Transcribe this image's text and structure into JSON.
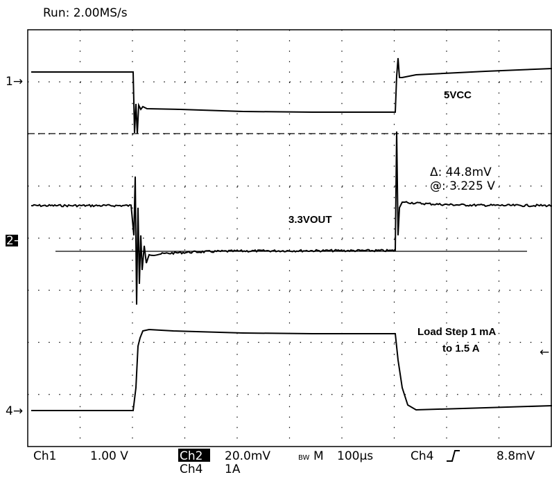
{
  "header": {
    "run": "Run: 2.00MS/s"
  },
  "markers": {
    "ch1": "1",
    "ch2": "2",
    "ch4": "4"
  },
  "annotations": {
    "vcc": "5VCC",
    "delta": "Δ: 44.8mV",
    "at": "@: 3.225 V",
    "vout": "3.3VOUT",
    "load1": "Load Step 1 mA",
    "load2": "to 1.5 A"
  },
  "footer": {
    "ch1": "Ch1",
    "ch1_scale": "1.00 V",
    "ch2": "Ch2",
    "ch2_scale": "20.0mV",
    "bw": "BW",
    "mode": "M",
    "timebase": "100µs",
    "trig_src": "Ch4",
    "trig_level": "8.8mV",
    "ch4": "Ch4",
    "ch4_scale": "1A"
  }
}
